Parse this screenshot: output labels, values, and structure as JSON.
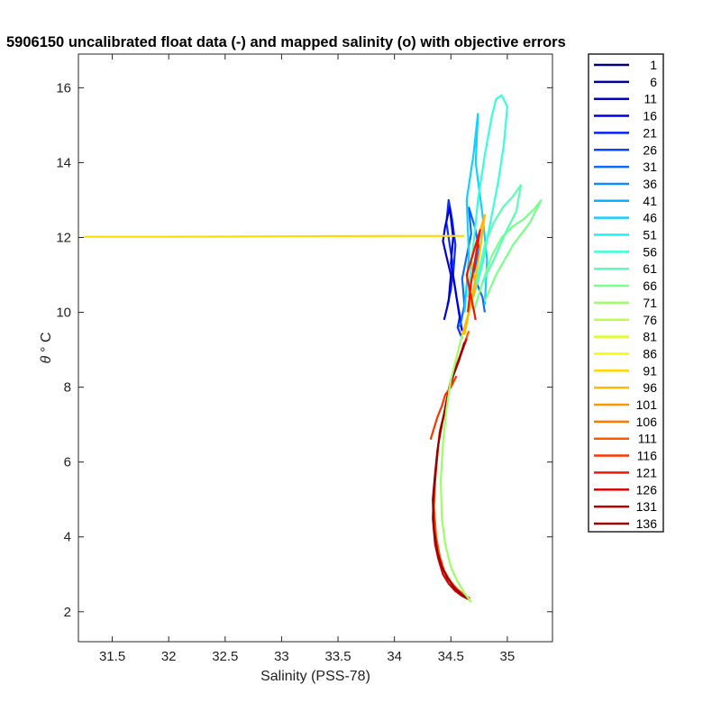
{
  "chart_data": {
    "type": "line",
    "title": "5906150 uncalibrated float data (-) and mapped salinity (o) with objective errors",
    "xlabel": "Salinity (PSS-78)",
    "ylabel_symbol": "θ",
    "ylabel_unit": "° C",
    "xlim": [
      31.2,
      35.4
    ],
    "ylim": [
      1.2,
      16.9
    ],
    "xticks": [
      "31.5",
      "32",
      "32.5",
      "33",
      "33.5",
      "34",
      "34.5",
      "35"
    ],
    "yticks": [
      "2",
      "4",
      "6",
      "8",
      "10",
      "12",
      "14",
      "16"
    ],
    "grid": false,
    "legend_position": "outside-right",
    "legend": [
      "1",
      "6",
      "11",
      "16",
      "21",
      "26",
      "31",
      "36",
      "41",
      "46",
      "51",
      "56",
      "61",
      "66",
      "71",
      "76",
      "81",
      "86",
      "91",
      "96",
      "101",
      "106",
      "111",
      "116",
      "121",
      "126",
      "131",
      "136"
    ],
    "legend_colors": [
      "#000080",
      "#00009e",
      "#0000bd",
      "#0000e0",
      "#0520ff",
      "#0a46ff",
      "#0d6aff",
      "#0d8aff",
      "#0aaeff",
      "#12d0ff",
      "#1cf0f5",
      "#38ffd8",
      "#5affb5",
      "#78ff8c",
      "#9cff66",
      "#bcff45",
      "#dcff22",
      "#f8fb05",
      "#ffda00",
      "#ffba00",
      "#ff9800",
      "#ff7800",
      "#ff5600",
      "#ff3400",
      "#f41400",
      "#d60000",
      "#b40000",
      "#960000"
    ],
    "profiles": [
      {
        "color": "#0a30ff",
        "x": [
          34.47,
          34.5,
          34.52,
          34.49,
          34.46,
          34.48,
          34.51,
          34.54,
          34.52,
          34.55,
          34.58,
          34.56,
          34.6
        ],
        "y": [
          10.2,
          10.6,
          11.2,
          11.8,
          12.4,
          13.0,
          12.5,
          11.8,
          11.0,
          10.4,
          9.9,
          9.6,
          9.3
        ]
      },
      {
        "color": "#0000dd",
        "x": [
          34.44,
          34.48,
          34.5,
          34.46,
          34.43,
          34.45,
          34.49,
          34.52,
          34.5,
          34.54,
          34.57,
          34.6
        ],
        "y": [
          9.8,
          10.3,
          11.0,
          11.5,
          11.9,
          12.3,
          12.8,
          12.0,
          11.3,
          10.6,
          10.0,
          9.5
        ]
      },
      {
        "color": "#0d6aff",
        "x": [
          34.58,
          34.62,
          34.6,
          34.64,
          34.68,
          34.66,
          34.71,
          34.75,
          34.7,
          34.78,
          34.8
        ],
        "y": [
          9.6,
          10.2,
          10.9,
          11.5,
          12.1,
          12.8,
          12.3,
          11.7,
          11.0,
          10.4,
          10.0
        ]
      },
      {
        "color": "#12d0ff",
        "x": [
          34.62,
          34.66,
          34.64,
          34.7,
          34.74,
          34.72,
          34.78,
          34.82,
          34.8
        ],
        "y": [
          10.0,
          11.5,
          13.0,
          14.2,
          15.3,
          14.0,
          12.6,
          11.4,
          10.2
        ]
      },
      {
        "color": "#38ffd8",
        "x": [
          34.65,
          34.7,
          34.74,
          34.8,
          34.86,
          34.9,
          34.95,
          35.0,
          34.97,
          34.92,
          34.85,
          34.78,
          34.7
        ],
        "y": [
          10.4,
          11.8,
          13.0,
          14.2,
          15.2,
          15.7,
          15.8,
          15.5,
          14.5,
          13.5,
          12.4,
          11.3,
          10.4
        ]
      },
      {
        "color": "#78ff8c",
        "x": [
          34.7,
          34.78,
          34.86,
          34.95,
          35.05,
          35.15,
          35.25,
          35.3,
          35.2,
          35.05,
          34.9,
          34.8
        ],
        "y": [
          10.0,
          10.8,
          11.5,
          12.0,
          12.3,
          12.5,
          12.8,
          13.0,
          12.4,
          11.8,
          11.0,
          10.3
        ]
      },
      {
        "color": "#5affb5",
        "x": [
          34.68,
          34.74,
          34.8,
          34.88,
          34.96,
          35.05,
          35.12,
          35.08,
          34.98,
          34.88,
          34.78
        ],
        "y": [
          10.3,
          11.0,
          11.8,
          12.4,
          12.8,
          13.1,
          13.4,
          12.7,
          12.1,
          11.4,
          10.8
        ]
      },
      {
        "color": "#ffda00",
        "x": [
          31.25,
          32.0,
          33.0,
          34.0,
          34.5,
          34.62
        ],
        "y": [
          12.02,
          12.02,
          12.03,
          12.04,
          12.04,
          12.04
        ]
      },
      {
        "color": "#ffba00",
        "x": [
          34.6,
          34.66,
          34.72,
          34.68,
          34.74,
          34.8,
          34.75,
          34.7,
          34.66,
          34.62
        ],
        "y": [
          9.4,
          10.0,
          10.7,
          11.4,
          12.0,
          12.6,
          11.5,
          10.6,
          10.0,
          9.4
        ]
      },
      {
        "color": "#ff5600",
        "x": [
          34.66,
          34.6,
          34.55,
          34.5,
          34.47,
          34.44,
          34.4,
          34.38,
          34.36,
          34.35,
          34.37,
          34.4,
          34.44,
          34.5,
          34.56,
          34.62,
          34.67
        ],
        "y": [
          9.5,
          9.0,
          8.6,
          8.2,
          7.8,
          7.3,
          6.8,
          6.2,
          5.5,
          4.8,
          4.0,
          3.5,
          3.1,
          2.8,
          2.6,
          2.45,
          2.35
        ]
      },
      {
        "color": "#d60000",
        "x": [
          34.64,
          34.58,
          34.53,
          34.49,
          34.46,
          34.42,
          34.39,
          34.37,
          34.35,
          34.34,
          34.36,
          34.39,
          34.43,
          34.48,
          34.54,
          34.6,
          34.66
        ],
        "y": [
          9.3,
          8.8,
          8.4,
          8.0,
          7.6,
          7.0,
          6.5,
          5.9,
          5.2,
          4.5,
          3.8,
          3.4,
          3.0,
          2.75,
          2.55,
          2.42,
          2.33
        ]
      },
      {
        "color": "#960000",
        "x": [
          34.62,
          34.57,
          34.52,
          34.48,
          34.45,
          34.41,
          34.38,
          34.36,
          34.34,
          34.35,
          34.38,
          34.42,
          34.47,
          34.53,
          34.6,
          34.65
        ],
        "y": [
          9.2,
          8.7,
          8.3,
          7.9,
          7.4,
          6.9,
          6.3,
          5.7,
          5.0,
          4.2,
          3.6,
          3.2,
          2.9,
          2.65,
          2.45,
          2.35
        ]
      },
      {
        "color": "#ff3400",
        "x": [
          34.55,
          34.5,
          34.45,
          34.42,
          34.38,
          34.35,
          34.32
        ],
        "y": [
          8.3,
          8.0,
          7.8,
          7.5,
          7.2,
          6.9,
          6.6
        ]
      },
      {
        "color": "#9cff66",
        "x": [
          34.6,
          34.55,
          34.5,
          34.46,
          34.43,
          34.41,
          34.42,
          34.45,
          34.5,
          34.56,
          34.62,
          34.68
        ],
        "y": [
          9.4,
          8.8,
          8.2,
          7.4,
          6.5,
          5.5,
          4.5,
          3.8,
          3.2,
          2.8,
          2.5,
          2.25
        ]
      },
      {
        "color": "#f41400",
        "x": [
          34.72,
          34.68,
          34.64,
          34.7,
          34.76,
          34.72,
          34.68,
          34.65
        ],
        "y": [
          9.8,
          10.4,
          11.0,
          11.6,
          12.2,
          11.5,
          10.8,
          10.0
        ]
      }
    ]
  }
}
